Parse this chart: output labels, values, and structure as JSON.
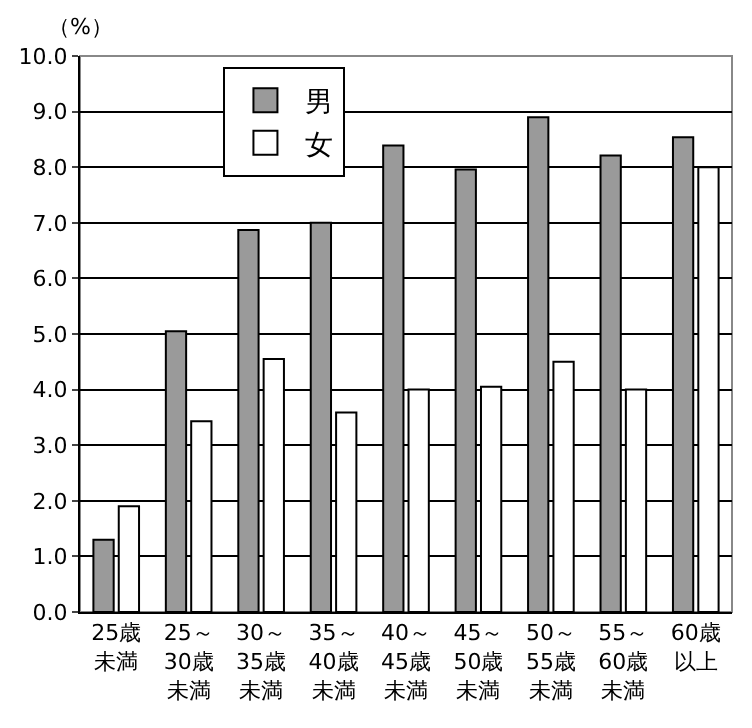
{
  "chart_data": {
    "type": "bar",
    "ylabel": "（%）",
    "categories": [
      "25歳未満",
      "25～30歳未満",
      "30～35歳未満",
      "35～40歳未満",
      "40～45歳未満",
      "45～50歳未満",
      "50～55歳未満",
      "55～60歳未満",
      "60歳以上"
    ],
    "series": [
      {
        "name": "男",
        "color": "#9a9a9a",
        "values": [
          1.3,
          5.05,
          6.87,
          7.0,
          8.39,
          7.96,
          8.9,
          8.21,
          8.54
        ]
      },
      {
        "name": "女",
        "color": "#ffffff",
        "values": [
          1.9,
          3.43,
          4.55,
          3.59,
          4.0,
          4.05,
          4.5,
          4.0,
          8.0
        ]
      }
    ],
    "ylim": [
      0,
      10
    ],
    "yticks": [
      {
        "value": 0,
        "label": "0.0"
      },
      {
        "value": 1,
        "label": "1.0"
      },
      {
        "value": 2,
        "label": "2.0"
      },
      {
        "value": 3,
        "label": "3.0"
      },
      {
        "value": 4,
        "label": "4.0"
      },
      {
        "value": 5,
        "label": "5.0"
      },
      {
        "value": 6,
        "label": "6.0"
      },
      {
        "value": 7,
        "label": "7.0"
      },
      {
        "value": 8,
        "label": "8.0"
      },
      {
        "value": 9,
        "label": "9.0"
      },
      {
        "value": 10,
        "label": "10.0"
      }
    ],
    "grid": "y",
    "legend": "top left"
  }
}
